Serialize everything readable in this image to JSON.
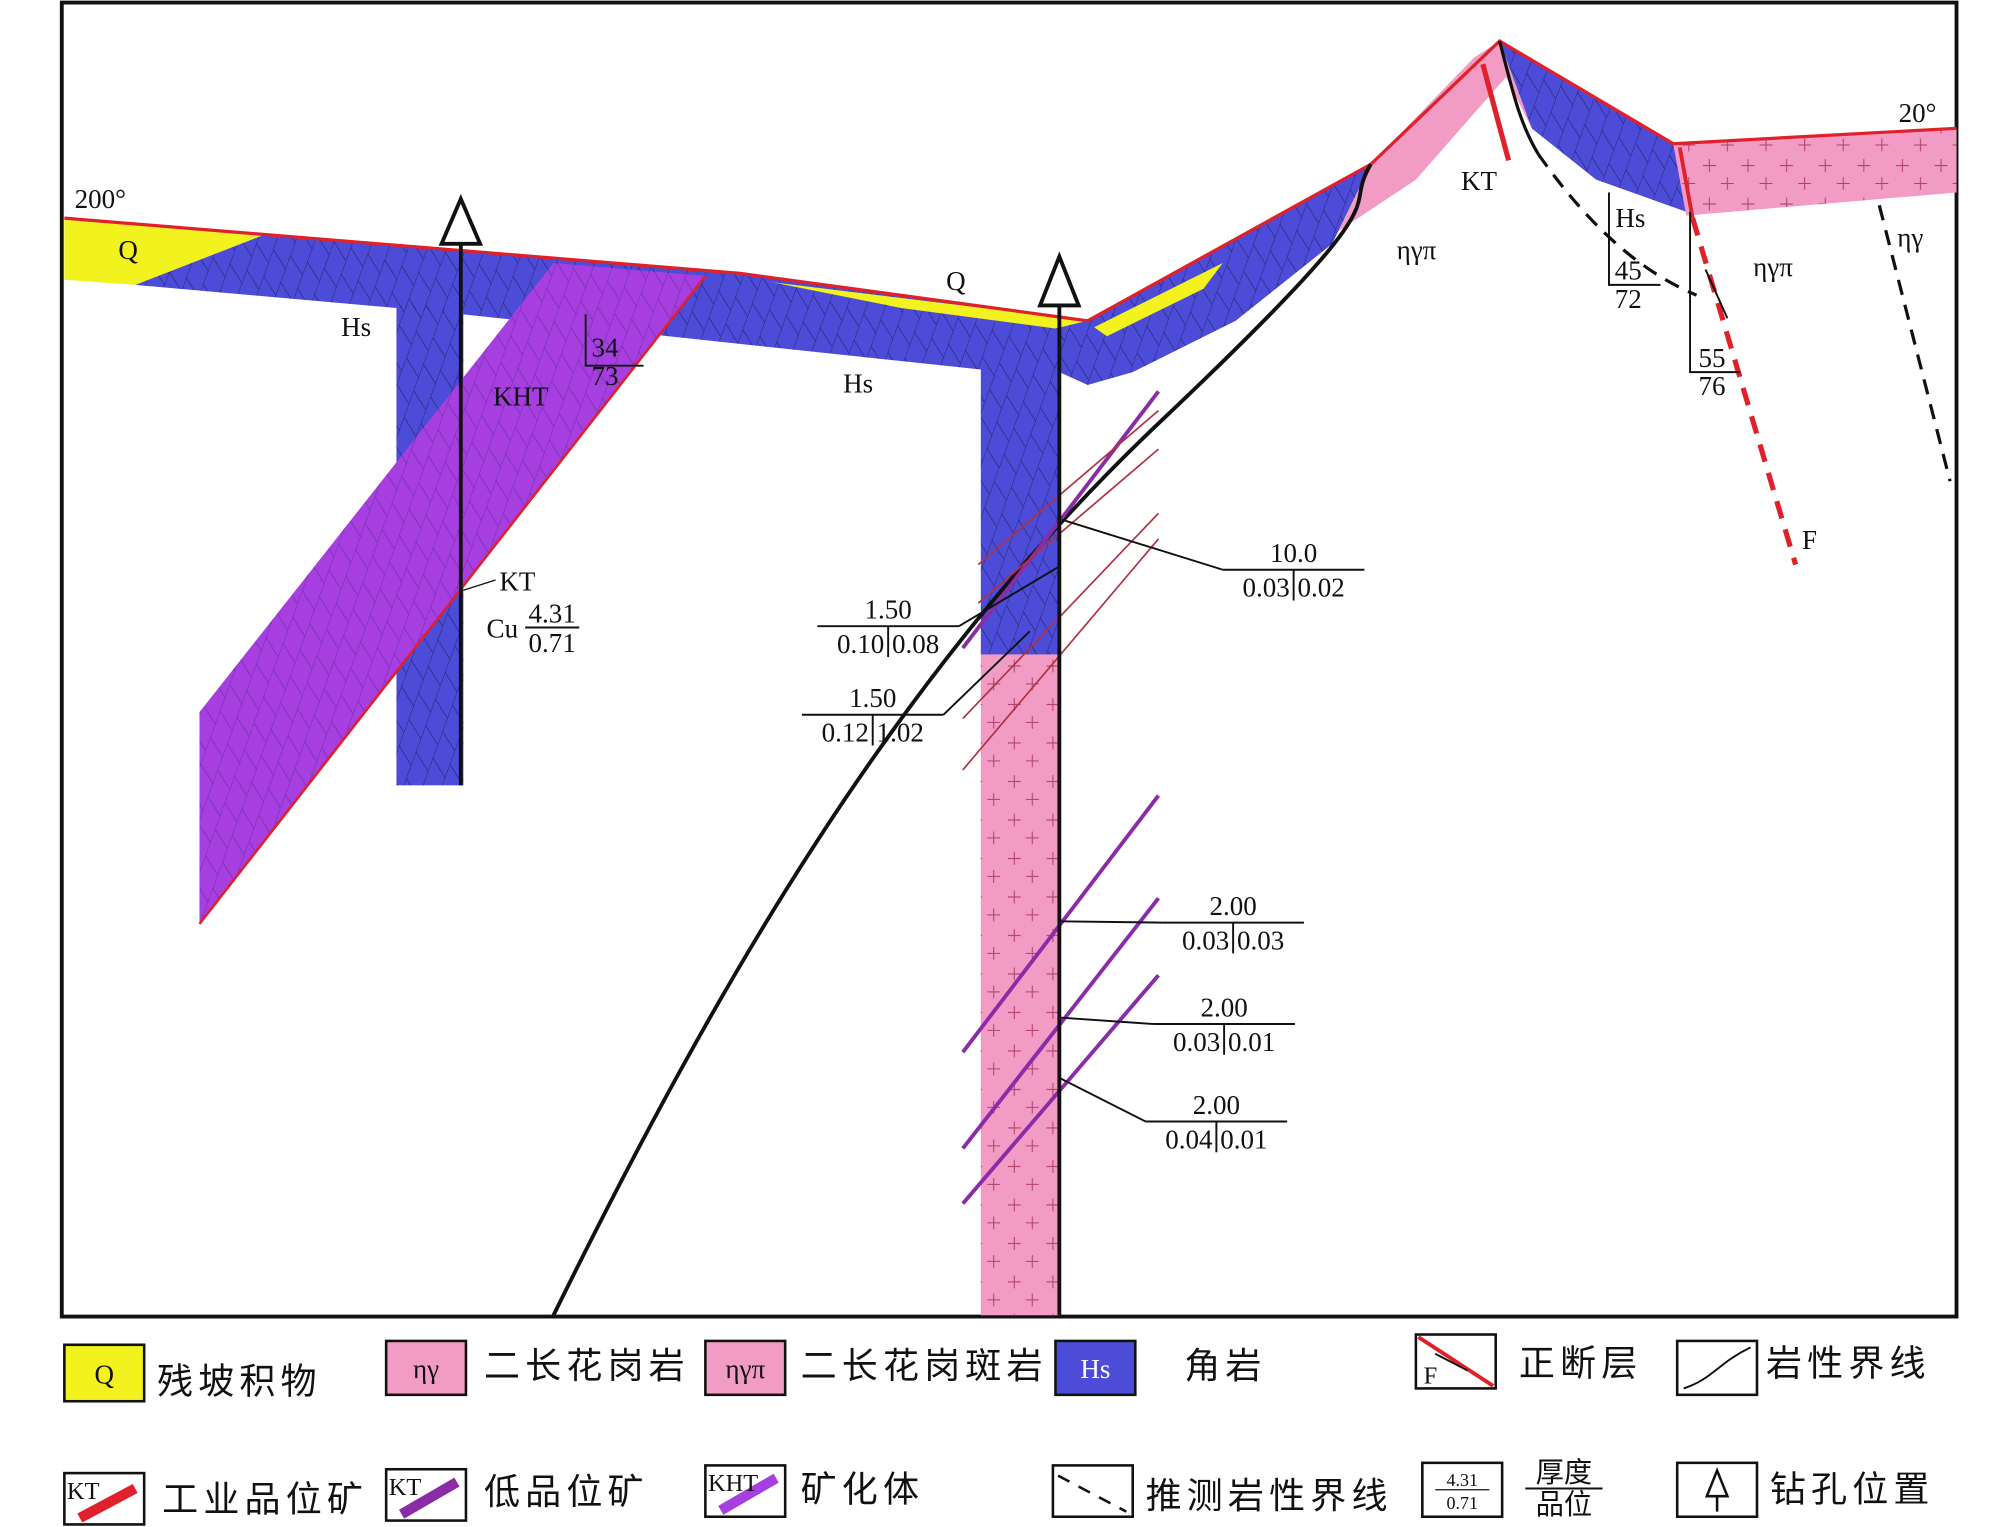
{
  "section": {
    "orientation_left": "200°",
    "orientation_right": "20°",
    "map_labels": [
      "Q",
      "Q",
      "Hs",
      "Hs",
      "Hs",
      "KHT",
      "KT",
      "KT",
      "ηγπ",
      "ηγπ",
      "ηγ",
      "F"
    ],
    "attitudes": [
      [
        "34",
        "73"
      ],
      [
        "45",
        "72"
      ],
      [
        "55",
        "76"
      ]
    ],
    "cu_sample": {
      "element": "Cu",
      "thickness": "4.31",
      "grade": "0.71"
    },
    "samples": [
      {
        "thickness": "10.0",
        "grades": [
          "0.03",
          "0.02"
        ]
      },
      {
        "thickness": "1.50",
        "grades": [
          "0.10",
          "0.08"
        ]
      },
      {
        "thickness": "1.50",
        "grades": [
          "0.12",
          "1.02"
        ]
      },
      {
        "thickness": "2.00",
        "grades": [
          "0.03",
          "0.03"
        ]
      },
      {
        "thickness": "2.00",
        "grades": [
          "0.03",
          "0.01"
        ]
      },
      {
        "thickness": "2.00",
        "grades": [
          "0.04",
          "0.01"
        ]
      }
    ]
  },
  "legend": [
    {
      "symbol": "Q",
      "label": "残坡积物"
    },
    {
      "symbol": "ηγ",
      "label": "二长花岗岩"
    },
    {
      "symbol": "ηγπ",
      "label": "二长花岗斑岩"
    },
    {
      "symbol": "Hs",
      "label": "角岩"
    },
    {
      "symbol": "F",
      "label": "正断层"
    },
    {
      "label": "岩性界线"
    },
    {
      "symbol": "KT",
      "label": "工业品位矿"
    },
    {
      "symbol": "KT",
      "label": "低品位矿"
    },
    {
      "symbol": "KHT",
      "label": "矿化体"
    },
    {
      "label": "推测岩性界线"
    },
    {
      "symbol_top": "4.31",
      "symbol_bottom": "0.71",
      "label_top": "厚度",
      "label_bottom": "品位"
    },
    {
      "label": "钻孔位置"
    }
  ]
}
